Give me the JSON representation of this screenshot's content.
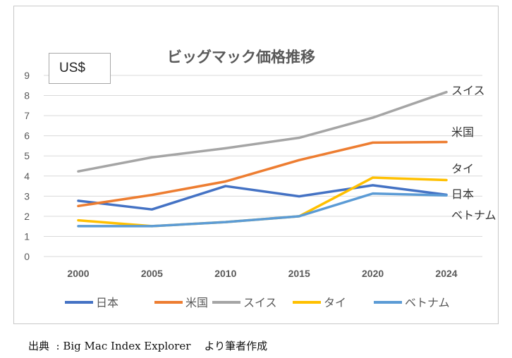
{
  "chart_data": {
    "type": "line",
    "title": "ビッグマック価格推移",
    "unit_label": "US$",
    "categories": [
      "2000",
      "2005",
      "2010",
      "2015",
      "2020",
      "2024"
    ],
    "ylim": [
      0,
      9
    ],
    "yticks": [
      0,
      1,
      2,
      3,
      4,
      5,
      6,
      7,
      8,
      9
    ],
    "grid": true,
    "legend_position": "bottom",
    "series": [
      {
        "name": "日本",
        "end_label": "日本",
        "color": "#4472c4",
        "values": [
          2.77,
          2.34,
          3.5,
          2.99,
          3.54,
          3.07
        ]
      },
      {
        "name": "米国",
        "end_label": "米国",
        "color": "#ed7d31",
        "values": [
          2.51,
          3.06,
          3.73,
          4.79,
          5.66,
          5.69
        ]
      },
      {
        "name": "スイス",
        "end_label": "スイス",
        "color": "#a5a5a5",
        "values": [
          4.23,
          4.93,
          5.38,
          5.9,
          6.9,
          8.17
        ]
      },
      {
        "name": "タイ",
        "end_label": "タイ",
        "color": "#ffc000",
        "values": [
          1.8,
          1.51,
          1.71,
          2.0,
          3.92,
          3.8
        ]
      },
      {
        "name": "ベトナム",
        "end_label": "ベトナム",
        "color": "#5b9bd5",
        "values": [
          1.51,
          1.51,
          1.71,
          2.0,
          3.13,
          3.04
        ]
      }
    ]
  },
  "source": "出典  : Big Mac Index Explorer    より筆者作成"
}
